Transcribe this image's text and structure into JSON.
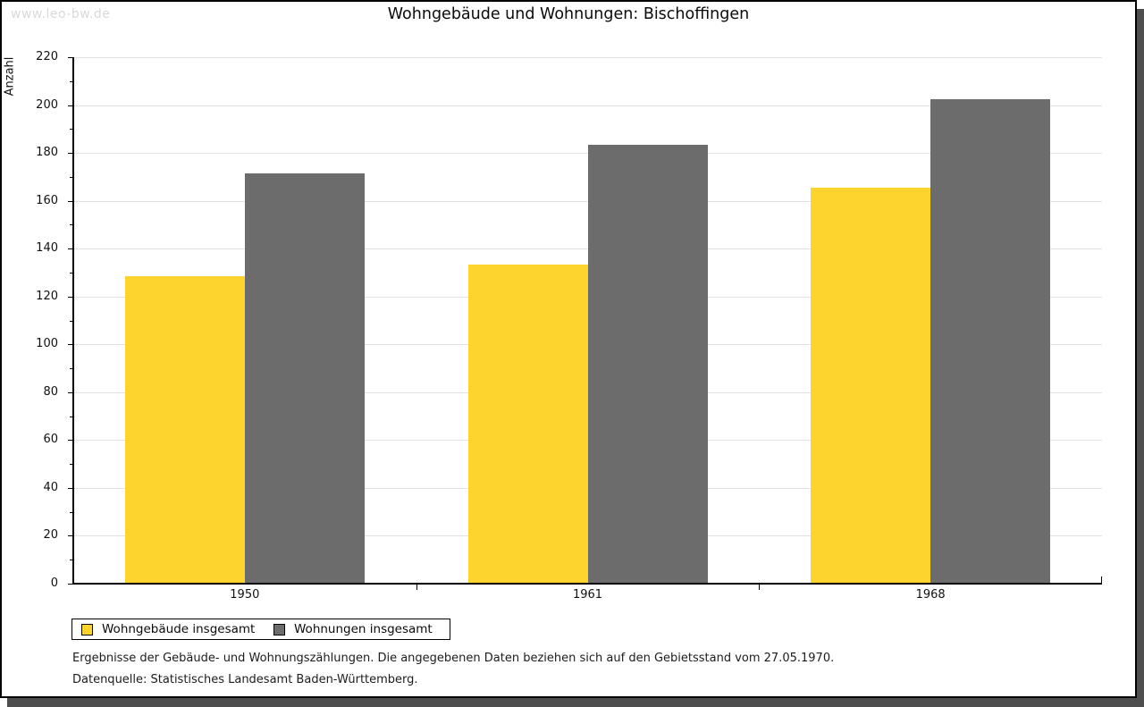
{
  "watermark": "www.leo-bw.de",
  "header": {
    "title": "Wohngebäude und Wohnungen: Bischoffingen"
  },
  "chart_data": {
    "type": "bar",
    "title": "Wohngebäude und Wohnungen: Bischoffingen",
    "xlabel": "",
    "ylabel": "Anzahl",
    "categories": [
      "1950",
      "1961",
      "1968"
    ],
    "series": [
      {
        "name": "Wohngebäude insgesamt",
        "color": "#fcd42d",
        "values": [
          128,
          133,
          165
        ]
      },
      {
        "name": "Wohnungen insgesamt",
        "color": "#6c6c6c",
        "values": [
          171,
          183,
          202
        ]
      }
    ],
    "ylim": [
      0,
      220
    ],
    "yticks": [
      0,
      20,
      40,
      60,
      80,
      100,
      120,
      140,
      160,
      180,
      200,
      220
    ],
    "minor_tick_step": 10,
    "grid": true,
    "gridline_color": "#e2e2e2",
    "legend_position": "bottom-left"
  },
  "footnotes": {
    "line1": "Ergebnisse der Gebäude- und Wohnungszählungen. Die angegebenen Daten beziehen sich auf den Gebietsstand vom 27.05.1970.",
    "line2": "Datenquelle: Statistisches Landesamt Baden-Württemberg."
  }
}
